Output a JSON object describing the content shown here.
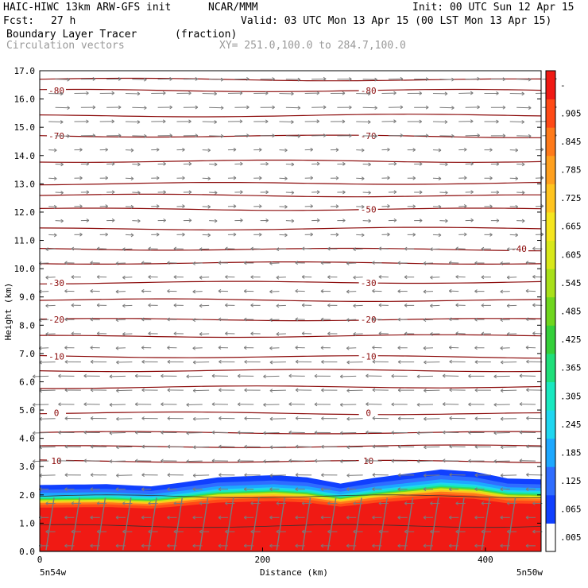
{
  "header": {
    "title": "HAIC-HIWC 13km ARW-GFS init",
    "org": "NCAR/MMM",
    "init": "Init: 00 UTC Sun 12 Apr 15",
    "fcst_label": "Fcst:",
    "fcst_value": "27 h",
    "valid": "Valid: 03 UTC Mon 13 Apr 15 (00 LST Mon 13 Apr 15)",
    "field_name": "Boundary Layer Tracer",
    "field_unit": "(fraction)",
    "vector_label": "Circulation vectors",
    "xy_range": "XY= 251.0,100.0 to 284.7,100.0"
  },
  "chart_data": {
    "type": "heatmap",
    "ylabel": "Height (km)",
    "xlabel": "Distance (km)",
    "ylim": [
      0,
      17
    ],
    "xlim": [
      0,
      450
    ],
    "yticks": [
      "0.0",
      "1.0",
      "2.0",
      "3.0",
      "4.0",
      "5.0",
      "6.0",
      "7.0",
      "8.0",
      "9.0",
      "10.0",
      "11.0",
      "12.0",
      "13.0",
      "14.0",
      "15.0",
      "16.0",
      "17.0"
    ],
    "xticks": [
      {
        "value": 0,
        "label": "0"
      },
      {
        "value": 200,
        "label": "200"
      },
      {
        "value": 400,
        "label": "400"
      }
    ],
    "x_end_labels": {
      "left": "5n54w",
      "right": "5n50w"
    },
    "colorbar": {
      "labels": [
        ".005",
        ".065",
        ".125",
        ".185",
        ".245",
        ".305",
        ".365",
        ".425",
        ".485",
        ".545",
        ".605",
        ".665",
        ".725",
        ".785",
        ".845",
        ".905",
        "-"
      ],
      "colors": [
        "#ffffff",
        "#1040ff",
        "#2f6dff",
        "#1da8ff",
        "#1fd6f0",
        "#19e8c0",
        "#1fdf7a",
        "#35d03a",
        "#6fd61e",
        "#a8e01a",
        "#d8e81a",
        "#f5e51e",
        "#ffc41e",
        "#ffa01e",
        "#ff7a1a",
        "#ff4a16",
        "#f01a14"
      ]
    },
    "tracer_top_km": [
      {
        "x": 0,
        "z": 2.35
      },
      {
        "x": 60,
        "z": 2.38
      },
      {
        "x": 100,
        "z": 2.3
      },
      {
        "x": 130,
        "z": 2.45
      },
      {
        "x": 160,
        "z": 2.62
      },
      {
        "x": 210,
        "z": 2.7
      },
      {
        "x": 240,
        "z": 2.62
      },
      {
        "x": 270,
        "z": 2.4
      },
      {
        "x": 300,
        "z": 2.6
      },
      {
        "x": 330,
        "z": 2.75
      },
      {
        "x": 360,
        "z": 2.9
      },
      {
        "x": 390,
        "z": 2.82
      },
      {
        "x": 420,
        "z": 2.58
      },
      {
        "x": 450,
        "z": 2.55
      }
    ],
    "temperature_contours": [
      {
        "label": "-80",
        "z": 16.3
      },
      {
        "label": "-70",
        "z": 14.7
      },
      {
        "label": "-50",
        "z": 12.1
      },
      {
        "label": "-40",
        "z": 10.7
      },
      {
        "label": "-30",
        "z": 9.5
      },
      {
        "label": "-20",
        "z": 8.2
      },
      {
        "label": "-10",
        "z": 6.9
      },
      {
        "label": "0",
        "z": 4.9
      },
      {
        "label": "10",
        "z": 3.2
      }
    ]
  }
}
